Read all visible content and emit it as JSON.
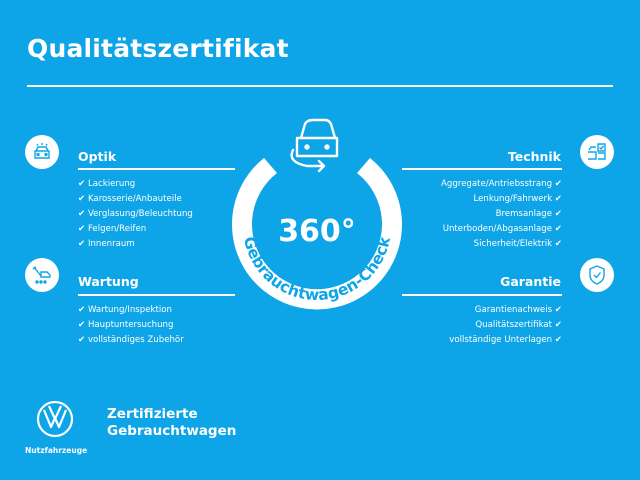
{
  "title": "Qualitätszertifikat",
  "colors": {
    "background": "#0ea5e8",
    "foreground": "#ffffff"
  },
  "check_glyph": "✔",
  "center": {
    "value": "360°",
    "label": "Gebrauchtwagen-Check",
    "icon": "car-rotate-icon"
  },
  "sections": {
    "optik": {
      "heading": "Optik",
      "icon": "car-lights-icon",
      "items": [
        "Lackierung",
        "Karosserie/Anbauteile",
        "Verglasung/Beleuchtung",
        "Felgen/Reifen",
        "Innenraum"
      ]
    },
    "wartung": {
      "heading": "Wartung",
      "icon": "service-tools-icon",
      "items": [
        "Wartung/Inspektion",
        "Hauptuntersuchung",
        "vollständiges Zubehör"
      ]
    },
    "technik": {
      "heading": "Technik",
      "icon": "car-checklist-icon",
      "items": [
        "Aggregate/Antriebsstrang",
        "Lenkung/Fahrwerk",
        "Bremsanlage",
        "Unterboden/Abgasanlage",
        "Sicherheit/Elektrik"
      ]
    },
    "garantie": {
      "heading": "Garantie",
      "icon": "shield-check-icon",
      "items": [
        "Garantienachweis",
        "Qualitätszertifikat",
        "vollständige Unterlagen"
      ]
    }
  },
  "footer": {
    "logo_caption": "Nutzfahrzeuge",
    "line1": "Zertifizierte",
    "line2": "Gebrauchtwagen"
  }
}
